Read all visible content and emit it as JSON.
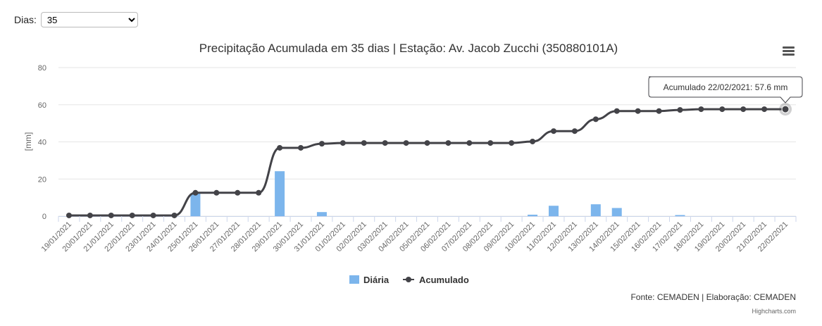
{
  "controls": {
    "dias_label": "Dias:",
    "dias_options": [
      "35"
    ],
    "dias_selected": "35"
  },
  "credits": "Highcharts.com",
  "source_note": "Fonte: CEMADEN | Elaboração: CEMADEN",
  "tooltip": {
    "text": "Acumulado 22/02/2021: 57.6 mm"
  },
  "colors": {
    "bars": "#7cb5ec",
    "line": "#434348",
    "grid": "#e6e6e6"
  },
  "chart_data": {
    "type": "bar+line",
    "title": "Precipitação Acumulada em 35 dias | Estação: Av. Jacob Zucchi (350880101A)",
    "ylabel": "[mm]",
    "ylim": [
      0,
      80
    ],
    "yticks": [
      0,
      20,
      40,
      60,
      80
    ],
    "grid": true,
    "legend": "bottom-center",
    "categories": [
      "19/01/2021",
      "20/01/2021",
      "21/01/2021",
      "22/01/2021",
      "23/01/2021",
      "24/01/2021",
      "25/01/2021",
      "26/01/2021",
      "27/01/2021",
      "28/01/2021",
      "29/01/2021",
      "30/01/2021",
      "31/01/2021",
      "01/02/2021",
      "02/02/2021",
      "03/02/2021",
      "04/02/2021",
      "05/02/2021",
      "06/02/2021",
      "07/02/2021",
      "08/02/2021",
      "09/02/2021",
      "10/02/2021",
      "11/02/2021",
      "12/02/2021",
      "13/02/2021",
      "14/02/2021",
      "15/02/2021",
      "16/02/2021",
      "17/02/2021",
      "18/02/2021",
      "19/02/2021",
      "20/02/2021",
      "21/02/2021",
      "22/02/2021"
    ],
    "series": [
      {
        "name": "Diária",
        "type": "bar",
        "values": [
          0,
          0,
          0,
          0,
          0,
          0,
          12.2,
          0,
          0,
          0,
          24.2,
          0,
          2.2,
          0,
          0,
          0,
          0,
          0,
          0,
          0,
          0,
          0,
          0.8,
          5.6,
          0,
          6.4,
          4.4,
          0,
          0,
          0.6,
          0,
          0,
          0,
          0,
          0
        ]
      },
      {
        "name": "Acumulado",
        "type": "line",
        "values": [
          0.4,
          0.4,
          0.4,
          0.4,
          0.4,
          0.4,
          12.6,
          12.6,
          12.6,
          12.6,
          36.8,
          36.8,
          39.0,
          39.4,
          39.4,
          39.4,
          39.4,
          39.4,
          39.4,
          39.4,
          39.4,
          39.4,
          40.2,
          45.8,
          45.8,
          52.2,
          56.6,
          56.6,
          56.6,
          57.2,
          57.6,
          57.6,
          57.6,
          57.6,
          57.6
        ]
      }
    ]
  }
}
